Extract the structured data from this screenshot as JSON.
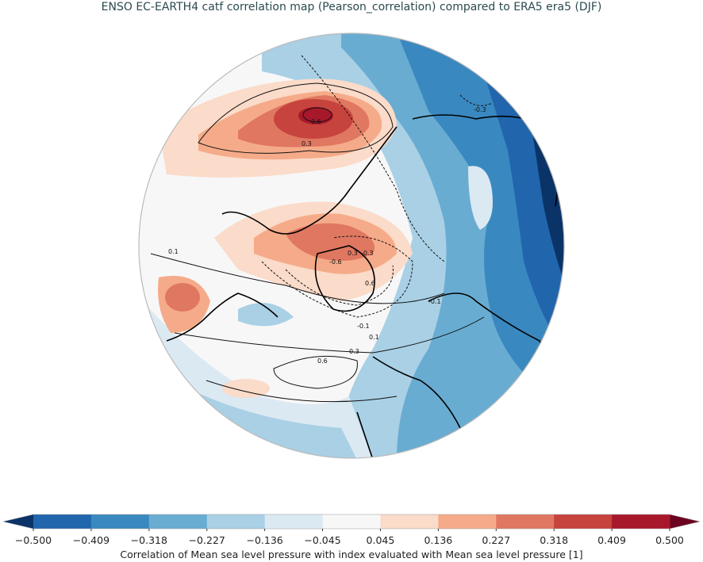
{
  "title": "ENSO EC-EARTH4 catf correlation map (Pearson_correlation) compared to ERA5 era5 (DJF)",
  "map": {
    "projection": "north-polar-stereographic",
    "contour_labels": [
      "0.6",
      "0.3",
      "-0.3",
      "0.1",
      "-0.1",
      "-0.6",
      "0.6",
      "0.3",
      "-0.3",
      "0.1",
      "-0.1",
      "0.3",
      "0.6"
    ]
  },
  "colorbar": {
    "ticks": [
      "−0.500",
      "−0.409",
      "−0.318",
      "−0.227",
      "−0.136",
      "−0.045",
      "0.045",
      "0.136",
      "0.227",
      "0.318",
      "0.409",
      "0.500"
    ],
    "colors": [
      "#2166ac",
      "#3a88c0",
      "#69acd2",
      "#a9d0e5",
      "#dbe9f2",
      "#f7f7f7",
      "#fbdbc9",
      "#f5ab89",
      "#e07761",
      "#c7433d",
      "#a8182b"
    ],
    "under_color": "#0a3468",
    "over_color": "#6b0421",
    "extend": "both",
    "label": "Correlation of Mean sea level pressure with index evaluated with Mean sea level pressure [1]"
  }
}
